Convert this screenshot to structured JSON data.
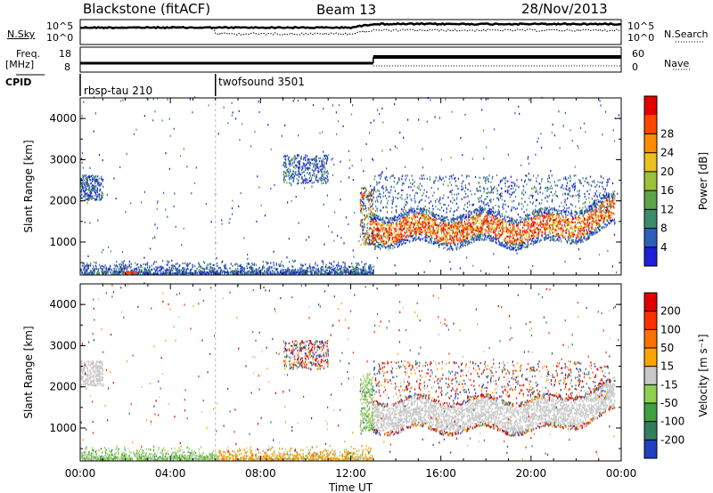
{
  "header": {
    "station": "Blackstone (fitACF)",
    "beam": "Beam 13",
    "date": "28/Nov/2013"
  },
  "summary": {
    "nsky_label": "N.Sky",
    "nsearch_label": "N.Search",
    "freq_label": "Freq.",
    "freq_unit": "[MHz]",
    "nave_label": "Nave",
    "cpid_label": "CPID",
    "noise_ticks": [
      "10^5",
      "10^0"
    ],
    "freq_ticks": [
      "18",
      "8"
    ],
    "nave_ticks": [
      "60",
      "0"
    ],
    "cpid_segments": [
      {
        "name": "rbsp-tau 210",
        "start_hour": 0
      },
      {
        "name": "twofsound 3501",
        "start_hour": 6
      }
    ]
  },
  "chart_data": [
    {
      "type": "heatmap",
      "ylabel": "Slant Range [km]",
      "xlabel": "Time UT",
      "xlim_hours": [
        0,
        24
      ],
      "ylim": [
        200,
        4500
      ],
      "x_ticks": [
        "00:00",
        "04:00",
        "08:00",
        "12:00",
        "16:00",
        "20:00",
        "00:00"
      ],
      "y_ticks": [
        1000,
        2000,
        3000,
        4000
      ],
      "colorbar": {
        "label": "Power [dB]",
        "ticks": [
          4,
          8,
          12,
          16,
          20,
          24,
          28
        ],
        "colors": [
          "#1f1fd8",
          "#2e5fb8",
          "#3d8a6e",
          "#5ea24a",
          "#9cc13a",
          "#e8c21e",
          "#ff8c00",
          "#ff4500",
          "#e00000"
        ]
      },
      "scatter_regions": [
        {
          "t": [
            12.8,
            23.8
          ],
          "r": [
            900,
            1700
          ],
          "value": "high"
        },
        {
          "t": [
            0,
            13
          ],
          "r": [
            200,
            350
          ],
          "value": "low"
        },
        {
          "t": [
            9,
            11
          ],
          "r": [
            2400,
            3100
          ],
          "value": "low"
        },
        {
          "t": [
            0,
            1
          ],
          "r": [
            2000,
            2600
          ],
          "value": "low"
        },
        {
          "t": [
            13,
            23.5
          ],
          "r": [
            1700,
            2700
          ],
          "value": "low"
        }
      ]
    },
    {
      "type": "heatmap",
      "ylabel": "Slant Range [km]",
      "xlabel": "Time UT",
      "xlim_hours": [
        0,
        24
      ],
      "ylim": [
        200,
        4500
      ],
      "x_ticks": [
        "00:00",
        "04:00",
        "08:00",
        "12:00",
        "16:00",
        "20:00",
        "00:00"
      ],
      "y_ticks": [
        1000,
        2000,
        3000,
        4000
      ],
      "colorbar": {
        "label": "Velocity [m s⁻¹]",
        "ticks": [
          200,
          100,
          50,
          15,
          -15,
          -50,
          -100,
          -200
        ],
        "colors": [
          "#1f3fbf",
          "#2f7f5f",
          "#3fa040",
          "#8fd050",
          "#c8c8c8",
          "#ffa500",
          "#ff7000",
          "#ff3000",
          "#e00000"
        ]
      }
    }
  ]
}
